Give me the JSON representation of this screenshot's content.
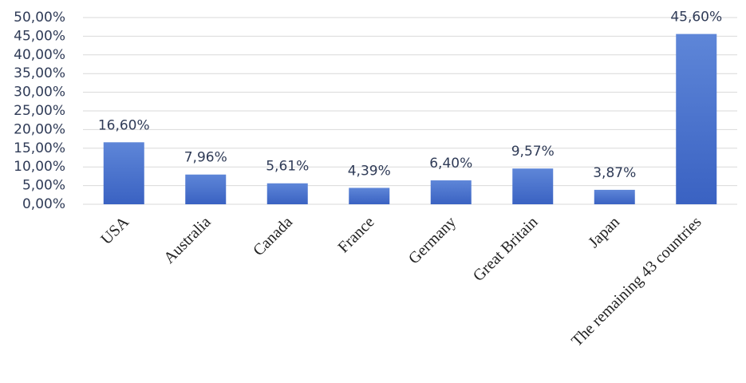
{
  "chart_data": {
    "type": "bar",
    "categories": [
      "USA",
      "Australia",
      "Canada",
      "France",
      "Germany",
      "Great Britain",
      "Japan",
      "The remaining 43 countries"
    ],
    "values": [
      16.6,
      7.96,
      5.61,
      4.39,
      6.4,
      9.57,
      3.87,
      45.6
    ],
    "value_labels": [
      "16,60%",
      "7,96%",
      "5,61%",
      "4,39%",
      "6,40%",
      "9,57%",
      "3,87%",
      "45,60%"
    ],
    "color": "#4472c4",
    "ylim": [
      0,
      50
    ],
    "yticks": [
      {
        "value": 0,
        "label": "0,00%"
      },
      {
        "value": 5,
        "label": "5,00%"
      },
      {
        "value": 10,
        "label": "10,00%"
      },
      {
        "value": 15,
        "label": "15,00%"
      },
      {
        "value": 20,
        "label": "20,00%"
      },
      {
        "value": 25,
        "label": "25,00%"
      },
      {
        "value": 30,
        "label": "30,00%"
      },
      {
        "value": 35,
        "label": "35,00%"
      },
      {
        "value": 40,
        "label": "40,00%"
      },
      {
        "value": 45,
        "label": "45,00%"
      },
      {
        "value": 50,
        "label": "50,00%"
      }
    ],
    "grid": true
  }
}
